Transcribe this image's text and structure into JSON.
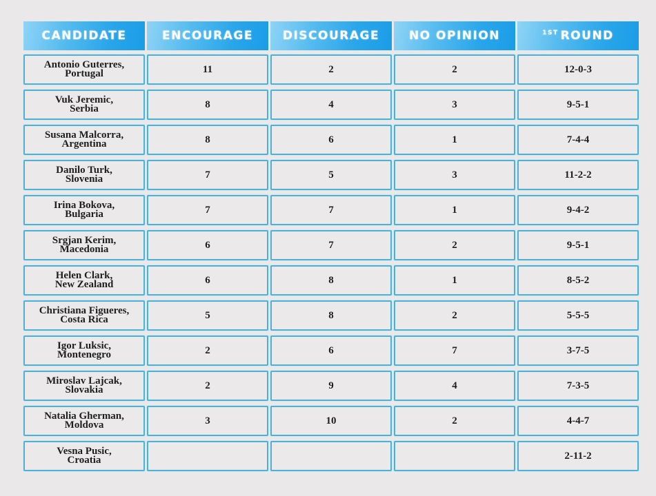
{
  "table": {
    "headers": {
      "candidate": "CANDIDATE",
      "encourage": "ENCOURAGE",
      "discourage": "DISCOURAGE",
      "no_opinion": "NO OPINION",
      "first_round_sup": "1ST",
      "first_round_label": "ROUND"
    },
    "rows": [
      {
        "name": "Antonio Guterres,",
        "country": "Portugal",
        "encourage": "11",
        "discourage": "2",
        "no_opinion": "2",
        "first_round": "12-0-3"
      },
      {
        "name": "Vuk Jeremic,",
        "country": "Serbia",
        "encourage": "8",
        "discourage": "4",
        "no_opinion": "3",
        "first_round": "9-5-1"
      },
      {
        "name": "Susana Malcorra,",
        "country": "Argentina",
        "encourage": "8",
        "discourage": "6",
        "no_opinion": "1",
        "first_round": "7-4-4"
      },
      {
        "name": "Danilo Turk,",
        "country": "Slovenia",
        "encourage": "7",
        "discourage": "5",
        "no_opinion": "3",
        "first_round": "11-2-2"
      },
      {
        "name": "Irina Bokova,",
        "country": "Bulgaria",
        "encourage": "7",
        "discourage": "7",
        "no_opinion": "1",
        "first_round": "9-4-2"
      },
      {
        "name": "Srgjan Kerim,",
        "country": "Macedonia",
        "encourage": "6",
        "discourage": "7",
        "no_opinion": "2",
        "first_round": "9-5-1"
      },
      {
        "name": "Helen Clark,",
        "country": "New Zealand",
        "encourage": "6",
        "discourage": "8",
        "no_opinion": "1",
        "first_round": "8-5-2"
      },
      {
        "name": "Christiana Figueres,",
        "country": "Costa Rica",
        "encourage": "5",
        "discourage": "8",
        "no_opinion": "2",
        "first_round": "5-5-5"
      },
      {
        "name": "Igor Luksic,",
        "country": "Montenegro",
        "encourage": "2",
        "discourage": "6",
        "no_opinion": "7",
        "first_round": "3-7-5"
      },
      {
        "name": "Miroslav Lajcak,",
        "country": "Slovakia",
        "encourage": "2",
        "discourage": "9",
        "no_opinion": "4",
        "first_round": "7-3-5"
      },
      {
        "name": "Natalia Gherman,",
        "country": "Moldova",
        "encourage": "3",
        "discourage": "10",
        "no_opinion": "2",
        "first_round": "4-4-7"
      },
      {
        "name": "Vesna Pusic,",
        "country": "Croatia",
        "encourage": "",
        "discourage": "",
        "no_opinion": "",
        "first_round": "2-11-2"
      }
    ]
  },
  "colors": {
    "header_gradient_start": "#8fd4f6",
    "header_gradient_end": "#1a9de6",
    "cell_border": "#4db0d4",
    "cell_bg": "#ebe9ea",
    "page_bg": "#eae8e9"
  }
}
